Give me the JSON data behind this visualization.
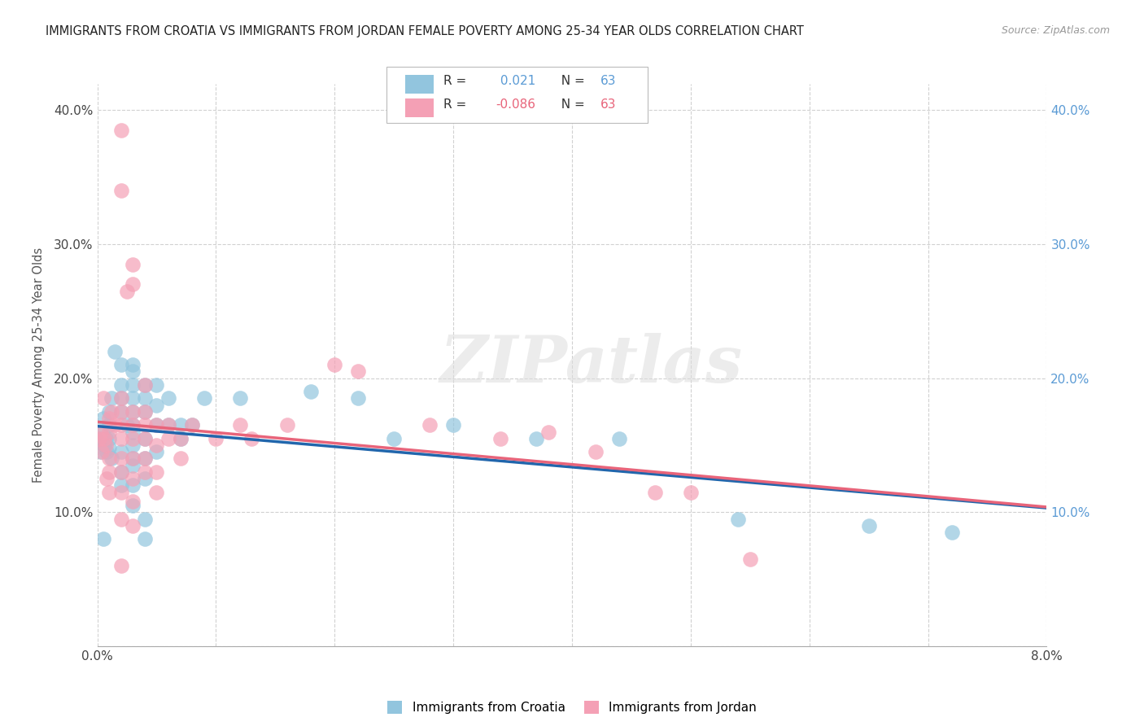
{
  "title": "IMMIGRANTS FROM CROATIA VS IMMIGRANTS FROM JORDAN FEMALE POVERTY AMONG 25-34 YEAR OLDS CORRELATION CHART",
  "source": "Source: ZipAtlas.com",
  "ylabel": "Female Poverty Among 25-34 Year Olds",
  "xlim": [
    0,
    0.08
  ],
  "ylim": [
    0,
    0.42
  ],
  "xtick_positions": [
    0.0,
    0.01,
    0.02,
    0.03,
    0.04,
    0.05,
    0.06,
    0.07,
    0.08
  ],
  "xtick_labels_shown": {
    "0.0": "0.0%",
    "0.08": "8.0%"
  },
  "yticks": [
    0.0,
    0.1,
    0.2,
    0.3,
    0.4
  ],
  "yticklabels_left": [
    "",
    "10.0%",
    "20.0%",
    "30.0%",
    "40.0%"
  ],
  "yticklabels_right": [
    "10.0%",
    "20.0%",
    "30.0%",
    "40.0%"
  ],
  "right_yticks": [
    0.1,
    0.2,
    0.3,
    0.4
  ],
  "croatia_color": "#92c5de",
  "jordan_color": "#f4a0b5",
  "croatia_R": 0.021,
  "croatia_N": 63,
  "jordan_R": -0.086,
  "jordan_N": 63,
  "croatia_line_color": "#2166ac",
  "jordan_line_color": "#e8647a",
  "watermark": "ZIPatlas",
  "croatia_scatter": [
    [
      0.0002,
      0.155
    ],
    [
      0.0003,
      0.145
    ],
    [
      0.0004,
      0.16
    ],
    [
      0.0005,
      0.17
    ],
    [
      0.0006,
      0.15
    ],
    [
      0.0007,
      0.155
    ],
    [
      0.0008,
      0.145
    ],
    [
      0.001,
      0.165
    ],
    [
      0.001,
      0.155
    ],
    [
      0.001,
      0.148
    ],
    [
      0.001,
      0.175
    ],
    [
      0.0012,
      0.14
    ],
    [
      0.0012,
      0.185
    ],
    [
      0.0015,
      0.22
    ],
    [
      0.002,
      0.195
    ],
    [
      0.002,
      0.185
    ],
    [
      0.002,
      0.21
    ],
    [
      0.002,
      0.175
    ],
    [
      0.002,
      0.145
    ],
    [
      0.002,
      0.13
    ],
    [
      0.002,
      0.12
    ],
    [
      0.0025,
      0.165
    ],
    [
      0.003,
      0.205
    ],
    [
      0.003,
      0.195
    ],
    [
      0.003,
      0.185
    ],
    [
      0.003,
      0.175
    ],
    [
      0.003,
      0.165
    ],
    [
      0.003,
      0.16
    ],
    [
      0.003,
      0.21
    ],
    [
      0.003,
      0.15
    ],
    [
      0.003,
      0.14
    ],
    [
      0.003,
      0.135
    ],
    [
      0.003,
      0.12
    ],
    [
      0.003,
      0.105
    ],
    [
      0.004,
      0.195
    ],
    [
      0.004,
      0.185
    ],
    [
      0.004,
      0.175
    ],
    [
      0.004,
      0.155
    ],
    [
      0.004,
      0.14
    ],
    [
      0.004,
      0.125
    ],
    [
      0.004,
      0.095
    ],
    [
      0.004,
      0.08
    ],
    [
      0.005,
      0.195
    ],
    [
      0.005,
      0.18
    ],
    [
      0.005,
      0.165
    ],
    [
      0.005,
      0.145
    ],
    [
      0.006,
      0.185
    ],
    [
      0.006,
      0.165
    ],
    [
      0.007,
      0.165
    ],
    [
      0.007,
      0.155
    ],
    [
      0.008,
      0.165
    ],
    [
      0.009,
      0.185
    ],
    [
      0.012,
      0.185
    ],
    [
      0.018,
      0.19
    ],
    [
      0.022,
      0.185
    ],
    [
      0.025,
      0.155
    ],
    [
      0.03,
      0.165
    ],
    [
      0.037,
      0.155
    ],
    [
      0.044,
      0.155
    ],
    [
      0.054,
      0.095
    ],
    [
      0.065,
      0.09
    ],
    [
      0.072,
      0.085
    ],
    [
      0.0005,
      0.08
    ]
  ],
  "jordan_scatter": [
    [
      0.0002,
      0.155
    ],
    [
      0.0003,
      0.16
    ],
    [
      0.0004,
      0.145
    ],
    [
      0.0005,
      0.185
    ],
    [
      0.0006,
      0.155
    ],
    [
      0.0007,
      0.15
    ],
    [
      0.0008,
      0.125
    ],
    [
      0.001,
      0.17
    ],
    [
      0.001,
      0.16
    ],
    [
      0.001,
      0.14
    ],
    [
      0.001,
      0.13
    ],
    [
      0.001,
      0.115
    ],
    [
      0.0012,
      0.175
    ],
    [
      0.0015,
      0.165
    ],
    [
      0.002,
      0.185
    ],
    [
      0.002,
      0.175
    ],
    [
      0.002,
      0.165
    ],
    [
      0.002,
      0.155
    ],
    [
      0.002,
      0.14
    ],
    [
      0.002,
      0.13
    ],
    [
      0.002,
      0.115
    ],
    [
      0.002,
      0.095
    ],
    [
      0.0025,
      0.265
    ],
    [
      0.003,
      0.285
    ],
    [
      0.003,
      0.27
    ],
    [
      0.003,
      0.175
    ],
    [
      0.003,
      0.165
    ],
    [
      0.003,
      0.155
    ],
    [
      0.003,
      0.14
    ],
    [
      0.003,
      0.125
    ],
    [
      0.003,
      0.108
    ],
    [
      0.003,
      0.09
    ],
    [
      0.004,
      0.195
    ],
    [
      0.004,
      0.175
    ],
    [
      0.004,
      0.165
    ],
    [
      0.004,
      0.155
    ],
    [
      0.004,
      0.14
    ],
    [
      0.004,
      0.13
    ],
    [
      0.005,
      0.165
    ],
    [
      0.005,
      0.15
    ],
    [
      0.005,
      0.13
    ],
    [
      0.005,
      0.115
    ],
    [
      0.006,
      0.165
    ],
    [
      0.006,
      0.155
    ],
    [
      0.007,
      0.155
    ],
    [
      0.007,
      0.14
    ],
    [
      0.008,
      0.165
    ],
    [
      0.01,
      0.155
    ],
    [
      0.012,
      0.165
    ],
    [
      0.013,
      0.155
    ],
    [
      0.016,
      0.165
    ],
    [
      0.02,
      0.21
    ],
    [
      0.022,
      0.205
    ],
    [
      0.028,
      0.165
    ],
    [
      0.034,
      0.155
    ],
    [
      0.038,
      0.16
    ],
    [
      0.042,
      0.145
    ],
    [
      0.047,
      0.115
    ],
    [
      0.05,
      0.115
    ],
    [
      0.055,
      0.065
    ],
    [
      0.002,
      0.385
    ],
    [
      0.002,
      0.34
    ],
    [
      0.002,
      0.06
    ]
  ]
}
